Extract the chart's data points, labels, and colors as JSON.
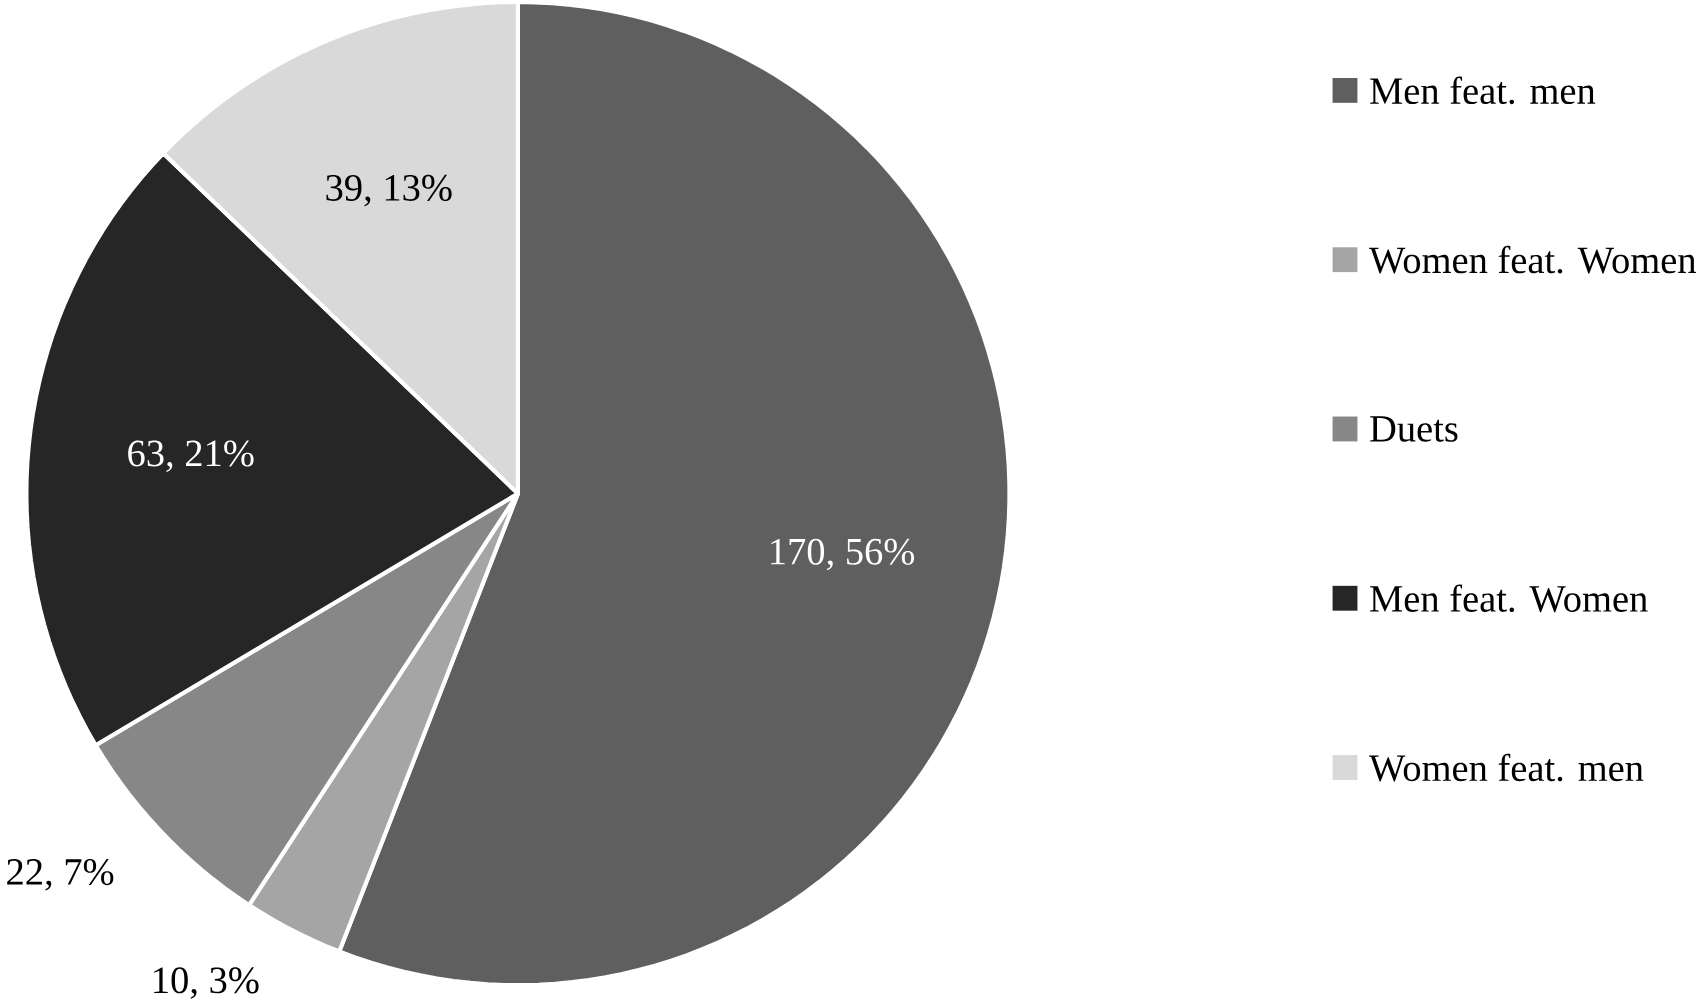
{
  "chart_data": {
    "type": "pie",
    "categories": [
      "Men feat. men",
      "Women feat. Women",
      "Duets",
      "Men feat. Women",
      "Women feat. men"
    ],
    "values": [
      170,
      10,
      22,
      63,
      39
    ],
    "value_labels": [
      "170, 56%",
      "10, 3%",
      "22, 7%",
      "63, 21%",
      "39, 13%"
    ],
    "colors": [
      "#5f5f5f",
      "#a5a5a5",
      "#878787",
      "#262626",
      "#d9d9d9"
    ],
    "legend": "right"
  }
}
